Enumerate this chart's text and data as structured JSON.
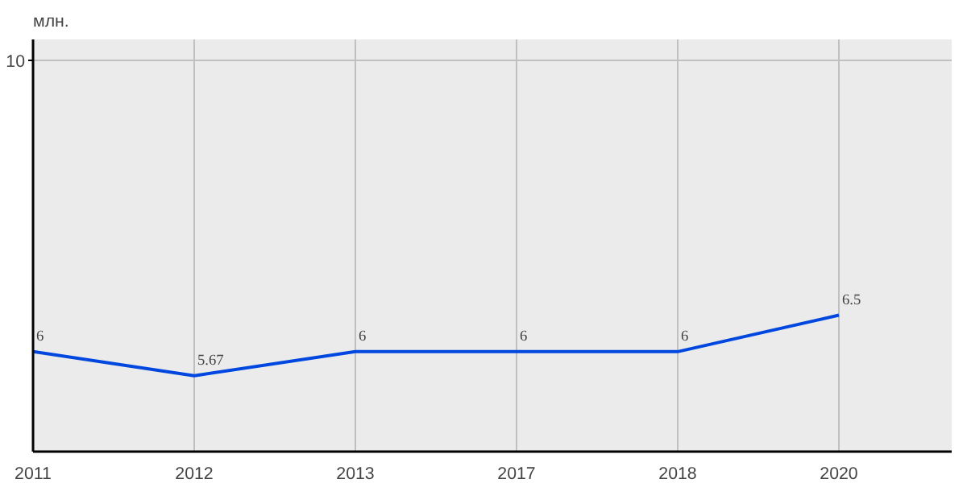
{
  "chart_data": {
    "type": "line",
    "ylabel": "млн.",
    "categories": [
      "2011",
      "2012",
      "2013",
      "2017",
      "2018",
      "2020"
    ],
    "series": [
      {
        "color": "#0047e0",
        "values": [
          6,
          5.67,
          6,
          6,
          6,
          6.5
        ]
      }
    ],
    "ylim": [
      4.63,
      10.28
    ],
    "annotations": [
      "10"
    ],
    "grid": true,
    "data_labels": true
  }
}
